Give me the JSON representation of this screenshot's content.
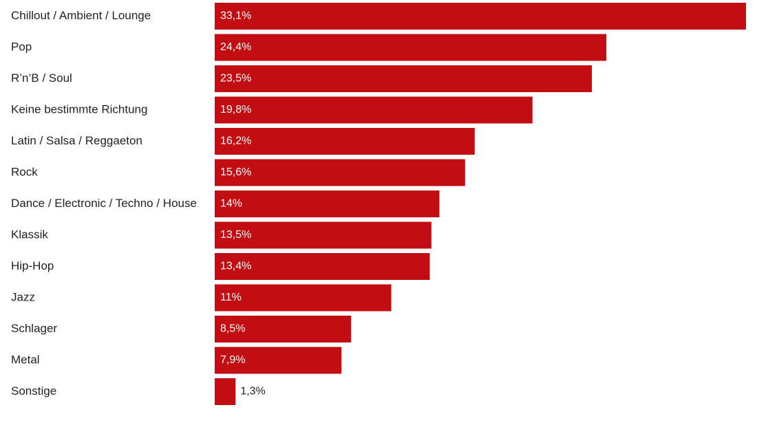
{
  "chart_data": {
    "type": "bar",
    "orientation": "horizontal",
    "categories": [
      "Chillout / Ambient / Lounge",
      "Pop",
      "R’n’B / Soul",
      "Keine bestimmte Richtung",
      "Latin / Salsa / Reggaeton",
      "Rock",
      "Dance / Electronic / Techno / House",
      "Klassik",
      "Hip-Hop",
      "Jazz",
      "Schlager",
      "Metal",
      "Sonstige"
    ],
    "values": [
      33.1,
      24.4,
      23.5,
      19.8,
      16.2,
      15.6,
      14,
      13.5,
      13.4,
      11,
      8.5,
      7.9,
      1.3
    ],
    "value_labels": [
      "33,1%",
      "24,4%",
      "23,5%",
      "19,8%",
      "16,2%",
      "15,6%",
      "14%",
      "13,5%",
      "13,4%",
      "11%",
      "8,5%",
      "7,9%",
      "1,3%"
    ],
    "unit": "%",
    "xlim": [
      0,
      33.1
    ],
    "bar_color": "#c20e13",
    "label_color_inside": "#ffffff",
    "label_color_outside": "#222222",
    "grid": false,
    "legend": "none"
  }
}
